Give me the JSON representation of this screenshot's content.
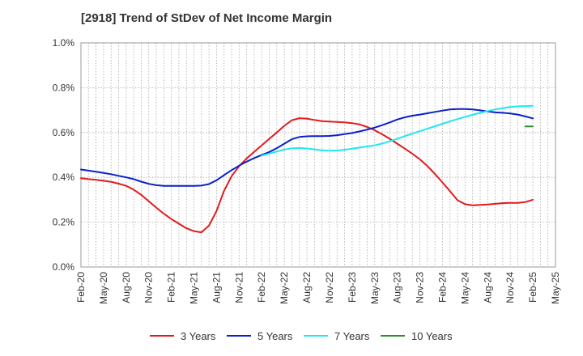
{
  "chart_data": {
    "type": "line",
    "title": "[2918]  Trend of StDev of Net Income Margin",
    "xlabel": "",
    "ylabel": "",
    "ylim": [
      0,
      1.0
    ],
    "y_ticks": [
      "0.0%",
      "0.2%",
      "0.4%",
      "0.6%",
      "0.8%",
      "1.0%"
    ],
    "x_ticks": [
      "Feb-20",
      "May-20",
      "Aug-20",
      "Nov-20",
      "Feb-21",
      "May-21",
      "Aug-21",
      "Nov-21",
      "Feb-22",
      "May-22",
      "Aug-22",
      "Nov-22",
      "Feb-23",
      "May-23",
      "Aug-23",
      "Nov-23",
      "Feb-24",
      "May-24",
      "Aug-24",
      "Nov-24",
      "Feb-25",
      "May-25"
    ],
    "grid": true,
    "legend_position": "bottom",
    "series": [
      {
        "name": "3 Years",
        "color": "#e31a1c",
        "points": [
          [
            "Feb-20",
            0.396
          ],
          [
            "Mar-20",
            0.392
          ],
          [
            "Apr-20",
            0.389
          ],
          [
            "May-20",
            0.385
          ],
          [
            "Jun-20",
            0.38
          ],
          [
            "Jul-20",
            0.372
          ],
          [
            "Aug-20",
            0.362
          ],
          [
            "Sep-20",
            0.345
          ],
          [
            "Oct-20",
            0.322
          ],
          [
            "Nov-20",
            0.293
          ],
          [
            "Dec-20",
            0.265
          ],
          [
            "Jan-21",
            0.238
          ],
          [
            "Feb-21",
            0.214
          ],
          [
            "Mar-21",
            0.193
          ],
          [
            "Apr-21",
            0.173
          ],
          [
            "May-21",
            0.16
          ],
          [
            "Jun-21",
            0.155
          ],
          [
            "Jul-21",
            0.185
          ],
          [
            "Aug-21",
            0.25
          ],
          [
            "Sep-21",
            0.34
          ],
          [
            "Oct-21",
            0.405
          ],
          [
            "Nov-21",
            0.45
          ],
          [
            "Dec-21",
            0.484
          ],
          [
            "Jan-22",
            0.514
          ],
          [
            "Feb-22",
            0.543
          ],
          [
            "Mar-22",
            0.572
          ],
          [
            "Apr-22",
            0.6
          ],
          [
            "May-22",
            0.63
          ],
          [
            "Jun-22",
            0.655
          ],
          [
            "Jul-22",
            0.664
          ],
          [
            "Aug-22",
            0.662
          ],
          [
            "Sep-22",
            0.656
          ],
          [
            "Oct-22",
            0.651
          ],
          [
            "Nov-22",
            0.649
          ],
          [
            "Dec-22",
            0.647
          ],
          [
            "Jan-23",
            0.645
          ],
          [
            "Feb-23",
            0.642
          ],
          [
            "Mar-23",
            0.636
          ],
          [
            "Apr-23",
            0.625
          ],
          [
            "May-23",
            0.61
          ],
          [
            "Jun-23",
            0.592
          ],
          [
            "Jul-23",
            0.572
          ],
          [
            "Aug-23",
            0.55
          ],
          [
            "Sep-23",
            0.528
          ],
          [
            "Oct-23",
            0.505
          ],
          [
            "Nov-23",
            0.48
          ],
          [
            "Dec-23",
            0.45
          ],
          [
            "Jan-24",
            0.415
          ],
          [
            "Feb-24",
            0.377
          ],
          [
            "Mar-24",
            0.338
          ],
          [
            "Apr-24",
            0.298
          ],
          [
            "May-24",
            0.28
          ],
          [
            "Jun-24",
            0.275
          ],
          [
            "Jul-24",
            0.277
          ],
          [
            "Aug-24",
            0.279
          ],
          [
            "Sep-24",
            0.282
          ],
          [
            "Oct-24",
            0.285
          ],
          [
            "Nov-24",
            0.286
          ],
          [
            "Dec-24",
            0.286
          ],
          [
            "Jan-25",
            0.29
          ],
          [
            "Feb-25",
            0.3
          ]
        ]
      },
      {
        "name": "5 Years",
        "color": "#0a1fcc",
        "points": [
          [
            "Feb-20",
            0.435
          ],
          [
            "Mar-20",
            0.43
          ],
          [
            "Apr-20",
            0.425
          ],
          [
            "May-20",
            0.42
          ],
          [
            "Jun-20",
            0.414
          ],
          [
            "Jul-20",
            0.407
          ],
          [
            "Aug-20",
            0.4
          ],
          [
            "Sep-20",
            0.392
          ],
          [
            "Oct-20",
            0.381
          ],
          [
            "Nov-20",
            0.371
          ],
          [
            "Dec-20",
            0.365
          ],
          [
            "Jan-21",
            0.362
          ],
          [
            "Feb-21",
            0.362
          ],
          [
            "Mar-21",
            0.362
          ],
          [
            "Apr-21",
            0.362
          ],
          [
            "May-21",
            0.362
          ],
          [
            "Jun-21",
            0.363
          ],
          [
            "Jul-21",
            0.37
          ],
          [
            "Aug-21",
            0.387
          ],
          [
            "Sep-21",
            0.41
          ],
          [
            "Oct-21",
            0.432
          ],
          [
            "Nov-21",
            0.452
          ],
          [
            "Dec-21",
            0.47
          ],
          [
            "Jan-22",
            0.486
          ],
          [
            "Feb-22",
            0.5
          ],
          [
            "Mar-22",
            0.513
          ],
          [
            "Apr-22",
            0.53
          ],
          [
            "May-22",
            0.55
          ],
          [
            "Jun-22",
            0.57
          ],
          [
            "Jul-22",
            0.58
          ],
          [
            "Aug-22",
            0.583
          ],
          [
            "Sep-22",
            0.584
          ],
          [
            "Oct-22",
            0.584
          ],
          [
            "Nov-22",
            0.585
          ],
          [
            "Dec-22",
            0.588
          ],
          [
            "Jan-23",
            0.593
          ],
          [
            "Feb-23",
            0.598
          ],
          [
            "Mar-23",
            0.605
          ],
          [
            "Apr-23",
            0.613
          ],
          [
            "May-23",
            0.622
          ],
          [
            "Jun-23",
            0.633
          ],
          [
            "Jul-23",
            0.645
          ],
          [
            "Aug-23",
            0.658
          ],
          [
            "Sep-23",
            0.668
          ],
          [
            "Oct-23",
            0.675
          ],
          [
            "Nov-23",
            0.68
          ],
          [
            "Dec-23",
            0.686
          ],
          [
            "Jan-24",
            0.692
          ],
          [
            "Feb-24",
            0.698
          ],
          [
            "Mar-24",
            0.703
          ],
          [
            "Apr-24",
            0.705
          ],
          [
            "May-24",
            0.705
          ],
          [
            "Jun-24",
            0.703
          ],
          [
            "Jul-24",
            0.699
          ],
          [
            "Aug-24",
            0.694
          ],
          [
            "Sep-24",
            0.69
          ],
          [
            "Oct-24",
            0.688
          ],
          [
            "Nov-24",
            0.685
          ],
          [
            "Dec-24",
            0.68
          ],
          [
            "Jan-25",
            0.672
          ],
          [
            "Feb-25",
            0.663
          ]
        ]
      },
      {
        "name": "7 Years",
        "color": "#1ee8f0",
        "points": [
          [
            "Feb-22",
            0.497
          ],
          [
            "Mar-22",
            0.506
          ],
          [
            "Apr-22",
            0.515
          ],
          [
            "May-22",
            0.524
          ],
          [
            "Jun-22",
            0.53
          ],
          [
            "Jul-22",
            0.531
          ],
          [
            "Aug-22",
            0.529
          ],
          [
            "Sep-22",
            0.525
          ],
          [
            "Oct-22",
            0.521
          ],
          [
            "Nov-22",
            0.519
          ],
          [
            "Dec-22",
            0.52
          ],
          [
            "Jan-23",
            0.523
          ],
          [
            "Feb-23",
            0.528
          ],
          [
            "Mar-23",
            0.533
          ],
          [
            "Apr-23",
            0.538
          ],
          [
            "May-23",
            0.543
          ],
          [
            "Jun-23",
            0.551
          ],
          [
            "Jul-23",
            0.561
          ],
          [
            "Aug-23",
            0.572
          ],
          [
            "Sep-23",
            0.584
          ],
          [
            "Oct-23",
            0.595
          ],
          [
            "Nov-23",
            0.606
          ],
          [
            "Dec-23",
            0.617
          ],
          [
            "Jan-24",
            0.628
          ],
          [
            "Feb-24",
            0.639
          ],
          [
            "Mar-24",
            0.65
          ],
          [
            "Apr-24",
            0.66
          ],
          [
            "May-24",
            0.67
          ],
          [
            "Jun-24",
            0.679
          ],
          [
            "Jul-24",
            0.688
          ],
          [
            "Aug-24",
            0.696
          ],
          [
            "Sep-24",
            0.703
          ],
          [
            "Oct-24",
            0.709
          ],
          [
            "Nov-24",
            0.714
          ],
          [
            "Dec-24",
            0.717
          ],
          [
            "Jan-25",
            0.718
          ],
          [
            "Feb-25",
            0.719
          ]
        ]
      },
      {
        "name": "10 Years",
        "color": "#2e8b2e",
        "points": [
          [
            "Jan-25",
            0.627
          ],
          [
            "Feb-25",
            0.627
          ]
        ]
      }
    ]
  }
}
